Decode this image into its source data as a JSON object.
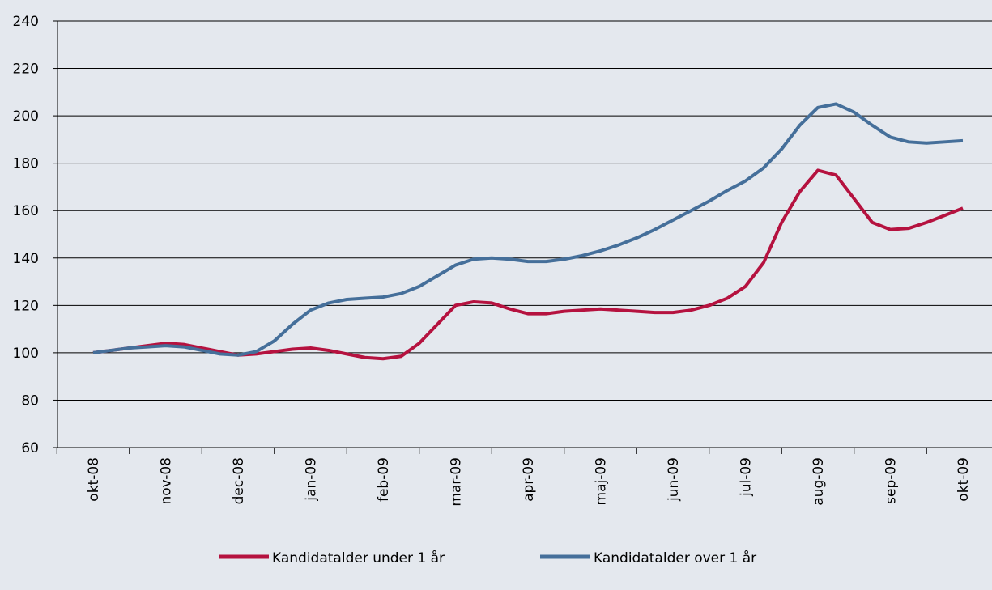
{
  "chart_data": {
    "type": "line",
    "categories": [
      "okt-08",
      null,
      null,
      null,
      "nov-08",
      null,
      null,
      null,
      "dec-08",
      null,
      null,
      null,
      "jan-09",
      null,
      null,
      null,
      "feb-09",
      null,
      null,
      null,
      "mar-09",
      null,
      null,
      null,
      "apr-09",
      null,
      null,
      null,
      "maj-09",
      null,
      null,
      null,
      "jun-09",
      null,
      null,
      null,
      "jul-09",
      null,
      null,
      null,
      "aug-09",
      null,
      null,
      null,
      "sep-09",
      null,
      null,
      null,
      "okt-09"
    ],
    "series": [
      {
        "name": "Kandidatalder under 1 år",
        "color": "#b5123f",
        "values": [
          100,
          101,
          102,
          103,
          104,
          103.5,
          102,
          100.5,
          99,
          99.5,
          100.5,
          101.5,
          102,
          101,
          99.5,
          98,
          97.5,
          98.5,
          104,
          112,
          120,
          121.5,
          121,
          118.5,
          116.5,
          116.5,
          117.5,
          118,
          118.5,
          118,
          117.5,
          117,
          117,
          118,
          120,
          123,
          128,
          138,
          155,
          168,
          177,
          175,
          165,
          155,
          152,
          152.5,
          155,
          158,
          161
        ]
      },
      {
        "name": "Kandidatalder over 1 år",
        "color": "#456f9a",
        "values": [
          100,
          101,
          102,
          102.5,
          103,
          102.5,
          101,
          99.5,
          99,
          100.5,
          105,
          112,
          118,
          121,
          122.5,
          123,
          123.5,
          125,
          128,
          132.5,
          137,
          139.5,
          140,
          139.5,
          138.5,
          138.5,
          139.5,
          141,
          143,
          145.5,
          148.5,
          152,
          156,
          160,
          164,
          168.5,
          172.5,
          178,
          186,
          196,
          203.5,
          205,
          201.5,
          196,
          191,
          189,
          188.5,
          189,
          189.5
        ]
      }
    ],
    "ylim": [
      60,
      240
    ],
    "yticks": [
      60,
      80,
      100,
      120,
      140,
      160,
      180,
      200,
      220,
      240
    ],
    "grid": true,
    "legend": "bottom"
  }
}
